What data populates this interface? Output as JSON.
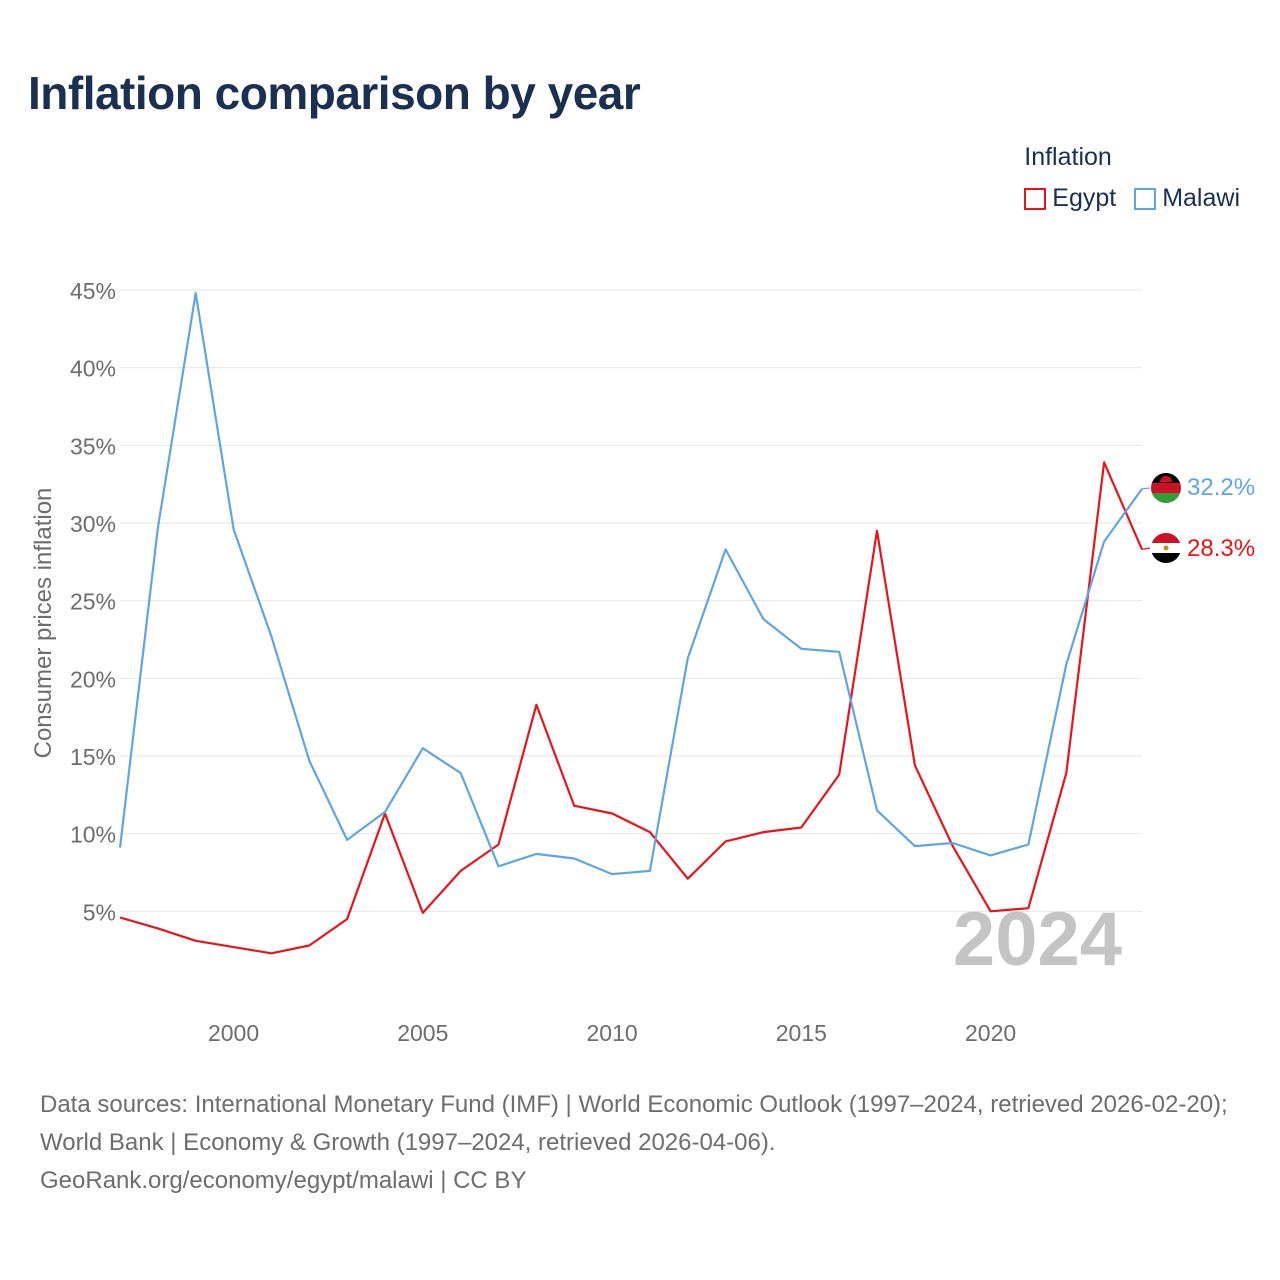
{
  "header": {
    "title": "Inflation comparison by year"
  },
  "legend": {
    "title": "Inflation",
    "items": [
      {
        "label": "Egypt",
        "color": "#e8141a"
      },
      {
        "label": "Malawi",
        "color": "#5fa5e3"
      }
    ]
  },
  "chart_data": {
    "type": "line",
    "title": "Inflation comparison by year",
    "xlabel": "",
    "ylabel": "Consumer prices inflation",
    "xlim": [
      1997,
      2024
    ],
    "ylim": [
      0,
      45
    ],
    "x_ticks": [
      2000,
      2005,
      2010,
      2015,
      2020
    ],
    "y_ticks": [
      5,
      10,
      15,
      20,
      25,
      30,
      35,
      40,
      45
    ],
    "y_tick_labels": [
      "5%",
      "10%",
      "15%",
      "20%",
      "25%",
      "30%",
      "35%",
      "40%",
      "45%"
    ],
    "grid": true,
    "year_watermark": "2024",
    "x": [
      1997,
      1998,
      1999,
      2000,
      2001,
      2002,
      2003,
      2004,
      2005,
      2006,
      2007,
      2008,
      2009,
      2010,
      2011,
      2012,
      2013,
      2014,
      2015,
      2016,
      2017,
      2018,
      2019,
      2020,
      2021,
      2022,
      2023,
      2024
    ],
    "series": [
      {
        "name": "Egypt",
        "color": "#e8141a",
        "end_label": "28.3%",
        "values": [
          4.6,
          3.9,
          3.1,
          2.7,
          2.3,
          2.8,
          4.5,
          11.3,
          4.9,
          7.6,
          9.3,
          18.3,
          11.8,
          11.3,
          10.1,
          7.1,
          9.5,
          10.1,
          10.4,
          13.8,
          29.5,
          14.4,
          9.2,
          5.0,
          5.2,
          13.9,
          33.9,
          28.3
        ]
      },
      {
        "name": "Malawi",
        "color": "#5fa5e3",
        "end_label": "32.2%",
        "values": [
          9.1,
          29.7,
          44.8,
          29.6,
          22.7,
          14.7,
          9.6,
          11.4,
          15.5,
          13.9,
          7.9,
          8.7,
          8.4,
          7.4,
          7.6,
          21.3,
          28.3,
          23.8,
          21.9,
          21.7,
          11.5,
          9.2,
          9.4,
          8.6,
          9.3,
          20.9,
          28.8,
          32.2
        ]
      }
    ]
  },
  "footer": {
    "sources": "Data sources: International Monetary Fund (IMF) | World Economic Outlook (1997–2024, retrieved 2026-02-20); World Bank | Economy & Growth (1997–2024, retrieved 2026-04-06).",
    "credit": "GeoRank.org/economy/egypt/malawi | CC BY"
  }
}
